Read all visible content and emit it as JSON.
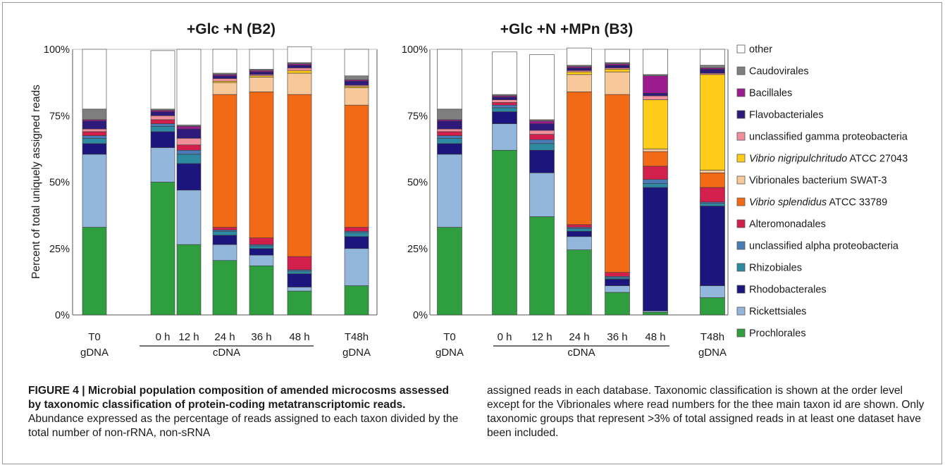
{
  "figure": {
    "panels": [
      {
        "title": "+Glc +N (B2)"
      },
      {
        "title": "+Glc +N +MPn (B3)"
      }
    ],
    "y_axis_label": "Percent of total uniquely assigned reads",
    "y_ticks": [
      "0%",
      "25%",
      "50%",
      "75%",
      "100%"
    ],
    "x_labels": [
      "T0",
      "0 h",
      "12 h",
      "24 h",
      "36 h",
      "48 h",
      "T48h"
    ],
    "sub_labels": {
      "gdna_left": "gDNA",
      "cdna": "cDNA",
      "gdna_right": "gDNA"
    }
  },
  "legend": [
    {
      "label": "other",
      "color": "#ffffff"
    },
    {
      "label": "Caudovirales",
      "color": "#7f7f7f"
    },
    {
      "label": "Bacillales",
      "color": "#9b1b8e"
    },
    {
      "label": "Flavobacteriales",
      "color": "#2e1a7a"
    },
    {
      "label": "unclassified gamma proteobacteria",
      "color": "#f08e9a"
    },
    {
      "label_italic": "Vibrio nigripulchritudo",
      "label_rest": " ATCC 27043",
      "color": "#ffcc1a"
    },
    {
      "label": "Vibrionales bacterium SWAT-3",
      "color": "#f6c89a"
    },
    {
      "label_italic": "Vibrio splendidus",
      "label_rest": " ATCC 33789",
      "color": "#f26a16"
    },
    {
      "label": "Alteromonadales",
      "color": "#d21f4b"
    },
    {
      "label": "unclassified alpha proteobacteria",
      "color": "#4a7bb6"
    },
    {
      "label": "Rhizobiales",
      "color": "#2d8aa0"
    },
    {
      "label": "Rhodobacterales",
      "color": "#1c157e"
    },
    {
      "label": "Rickettsiales",
      "color": "#93b6dc"
    },
    {
      "label": "Prochlorales",
      "color": "#2e9e3e"
    }
  ],
  "chart_data": [
    {
      "type": "bar",
      "title": "+Glc +N (B2)",
      "ylabel": "Percent of total uniquely assigned reads",
      "ylim": [
        0,
        100
      ],
      "categories": [
        "T0 gDNA",
        "0 h cDNA",
        "12 h cDNA",
        "24 h cDNA",
        "36 h cDNA",
        "48 h cDNA",
        "T48h gDNA"
      ],
      "stacked": true,
      "series": [
        {
          "name": "Prochlorales",
          "values": [
            33,
            50,
            26.5,
            20.5,
            18.5,
            9,
            11
          ]
        },
        {
          "name": "Rickettsiales",
          "values": [
            27.5,
            13,
            20.5,
            6,
            4,
            1.5,
            14
          ]
        },
        {
          "name": "Rhodobacterales",
          "values": [
            4,
            6,
            10,
            3.5,
            2.5,
            5,
            4.5
          ]
        },
        {
          "name": "Rhizobiales",
          "values": [
            2,
            2,
            3.5,
            1.5,
            1,
            1,
            1.5
          ]
        },
        {
          "name": "unclassified alpha proteobacteria",
          "values": [
            1,
            1,
            1.5,
            0.5,
            0.5,
            0.5,
            0.5
          ]
        },
        {
          "name": "Alteromonadales",
          "values": [
            1.5,
            1.5,
            2,
            1,
            2.5,
            5,
            1.5
          ]
        },
        {
          "name": "Vibrio splendidus ATCC 33789",
          "values": [
            0,
            0,
            0,
            50,
            55,
            61,
            46
          ]
        },
        {
          "name": "Vibrionales bacterium SWAT-3",
          "values": [
            0,
            0,
            0,
            4.5,
            5.5,
            8,
            6.5
          ]
        },
        {
          "name": "Vibrio nigripulchritudo ATCC 27043",
          "values": [
            0,
            0,
            0,
            0.5,
            0.5,
            1,
            0.5
          ]
        },
        {
          "name": "unclassified gamma proteobacteria",
          "values": [
            1,
            1.5,
            2.5,
            1,
            0.5,
            1,
            0.5
          ]
        },
        {
          "name": "Flavobacteriales",
          "values": [
            3,
            1.5,
            3.5,
            1,
            1,
            1,
            1.5
          ]
        },
        {
          "name": "Bacillales",
          "values": [
            0.5,
            0.5,
            1,
            0.5,
            0.5,
            0.5,
            0.5
          ]
        },
        {
          "name": "Caudovirales",
          "values": [
            4,
            0.5,
            0.5,
            0.5,
            0.5,
            0.5,
            1.5
          ]
        },
        {
          "name": "other",
          "values": [
            22.5,
            22,
            28.5,
            9,
            7.5,
            6,
            10
          ]
        }
      ]
    },
    {
      "type": "bar",
      "title": "+Glc +N +MPn (B3)",
      "ylim": [
        0,
        100
      ],
      "categories": [
        "T0 gDNA",
        "0 h cDNA",
        "12 h cDNA",
        "24 h cDNA",
        "36 h cDNA",
        "48 h cDNA",
        "T48h gDNA"
      ],
      "stacked": true,
      "series": [
        {
          "name": "Prochlorales",
          "values": [
            33,
            62,
            37,
            24.5,
            8.5,
            1,
            6.5
          ]
        },
        {
          "name": "Rickettsiales",
          "values": [
            27.5,
            10,
            16.5,
            5,
            2.5,
            0.5,
            4.5
          ]
        },
        {
          "name": "Rhodobacterales",
          "values": [
            4,
            4.5,
            8.5,
            2,
            2.5,
            46.5,
            30
          ]
        },
        {
          "name": "Rhizobiales",
          "values": [
            2,
            1.5,
            2.5,
            1,
            0.5,
            1.5,
            1
          ]
        },
        {
          "name": "unclassified alpha proteobacteria",
          "values": [
            1,
            1,
            1.5,
            0.5,
            0.5,
            1.5,
            0.5
          ]
        },
        {
          "name": "Alteromonadales",
          "values": [
            1.5,
            1,
            2,
            1,
            1.5,
            5,
            5.5
          ]
        },
        {
          "name": "Vibrio splendidus ATCC 33789",
          "values": [
            0,
            0,
            0,
            50,
            67,
            5.5,
            5.5
          ]
        },
        {
          "name": "Vibrionales bacterium SWAT-3",
          "values": [
            0,
            0,
            0,
            6.5,
            8.5,
            1,
            1
          ]
        },
        {
          "name": "Vibrio nigripulchritudo ATCC 27043",
          "values": [
            0,
            0,
            0,
            1,
            1,
            18.5,
            36
          ]
        },
        {
          "name": "unclassified gamma proteobacteria",
          "values": [
            1,
            1,
            1.5,
            0.5,
            0.5,
            1.5,
            0.5
          ]
        },
        {
          "name": "Flavobacteriales",
          "values": [
            3,
            1,
            2.5,
            1,
            1,
            1,
            1.5
          ]
        },
        {
          "name": "Bacillales",
          "values": [
            0.5,
            0.5,
            1,
            0.5,
            0.5,
            6.5,
            0.5
          ]
        },
        {
          "name": "Caudovirales",
          "values": [
            4,
            0.5,
            0.5,
            0.5,
            0.5,
            0.5,
            1
          ]
        },
        {
          "name": "other",
          "values": [
            22.5,
            16,
            24.5,
            6.5,
            5,
            9.5,
            6
          ]
        }
      ]
    }
  ],
  "caption": {
    "label": "FIGURE 4 | Microbial population composition of amended microcosms assessed by taxonomic classification of protein-coding metatranscriptomic reads.",
    "text_left": " Abundance expressed as the percentage of reads assigned to each taxon divided by the total number of non-rRNA, non-sRNA",
    "text_right": "assigned reads in each database. Taxonomic classification is shown at the order level except for the Vibrionales where read numbers for the thee main taxon id are shown. Only taxonomic groups that represent >3% of total assigned reads in at least one dataset have been included."
  }
}
